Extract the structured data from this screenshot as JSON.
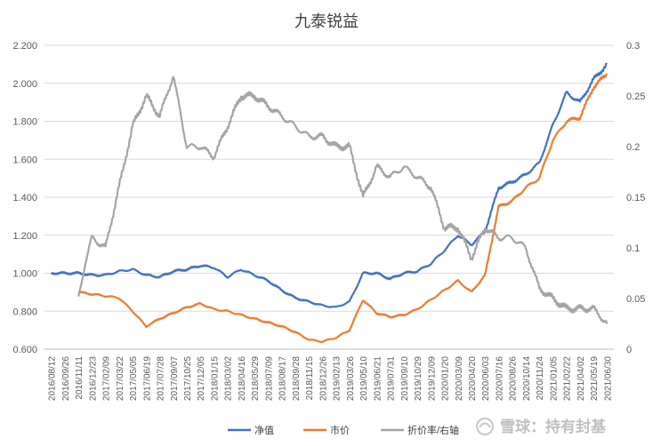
{
  "chart_data": {
    "type": "line",
    "title": "九泰锐益",
    "y_left": {
      "min": 0.6,
      "max": 2.2,
      "step": 0.2,
      "ticks": [
        "0.600",
        "0.800",
        "1.000",
        "1.200",
        "1.400",
        "1.600",
        "1.800",
        "2.000",
        "2.200"
      ]
    },
    "y_right": {
      "min": 0,
      "max": 0.3,
      "step": 0.05,
      "ticks": [
        "0",
        "0.05",
        "0.1",
        "0.15",
        "0.2",
        "0.25",
        "0.3"
      ]
    },
    "x_ticks": [
      "2016/08/12",
      "2016/09/26",
      "2016/11/11",
      "2016/12/23",
      "2017/02/09",
      "2017/03/22",
      "2017/05/05",
      "2017/06/19",
      "2017/07/28",
      "2017/09/07",
      "2017/10/25",
      "2017/12/05",
      "2018/01/15",
      "2018/03/02",
      "2018/04/16",
      "2018/05/29",
      "2018/07/09",
      "2018/08/17",
      "2018/09/28",
      "2018/11/15",
      "2018/12/26",
      "2019/02/13",
      "2019/03/26",
      "2019/05/10",
      "2019/06/21",
      "2019/07/31",
      "2019/09/10",
      "2019/10/29",
      "2019/12/09",
      "2020/01/20",
      "2020/03/09",
      "2020/04/20",
      "2020/06/03",
      "2020/07/16",
      "2020/08/26",
      "2020/10/14",
      "2020/11/24",
      "2021/01/05",
      "2021/02/22",
      "2021/04/02",
      "2021/05/19",
      "2021/06/30"
    ],
    "series": [
      {
        "name": "净值",
        "axis": "left",
        "color": "#4472C4",
        "x": [
          0,
          1,
          2,
          3,
          4,
          5,
          6,
          7,
          8,
          9,
          10,
          11,
          12,
          13,
          14,
          15,
          16,
          17,
          18,
          19,
          20,
          21,
          22,
          23,
          24,
          25,
          26,
          27,
          28,
          29,
          30,
          31,
          32,
          33,
          34,
          35,
          36,
          37,
          38,
          39,
          40,
          41
        ],
        "values": [
          1.0,
          1.0,
          1.0,
          0.99,
          0.99,
          1.01,
          1.02,
          0.99,
          0.98,
          1.01,
          1.02,
          1.04,
          1.03,
          0.98,
          1.02,
          0.99,
          0.96,
          0.91,
          0.87,
          0.85,
          0.83,
          0.82,
          0.85,
          1.0,
          1.0,
          0.97,
          1.0,
          1.01,
          1.05,
          1.12,
          1.2,
          1.15,
          1.22,
          1.45,
          1.48,
          1.52,
          1.58,
          1.78,
          1.95,
          1.9,
          2.02,
          2.1
        ]
      },
      {
        "name": "市价",
        "axis": "left",
        "color": "#ED7D31",
        "x": [
          2,
          3,
          4,
          5,
          6,
          7,
          8,
          9,
          10,
          11,
          12,
          13,
          14,
          15,
          16,
          17,
          18,
          19,
          20,
          21,
          22,
          23,
          24,
          25,
          26,
          27,
          28,
          29,
          30,
          31,
          32,
          33,
          34,
          35,
          36,
          37,
          38,
          39,
          40,
          41
        ],
        "values": [
          0.9,
          0.89,
          0.88,
          0.87,
          0.8,
          0.72,
          0.76,
          0.79,
          0.82,
          0.84,
          0.81,
          0.8,
          0.78,
          0.76,
          0.74,
          0.72,
          0.69,
          0.65,
          0.64,
          0.66,
          0.7,
          0.86,
          0.79,
          0.77,
          0.78,
          0.81,
          0.86,
          0.91,
          0.96,
          0.9,
          0.99,
          1.35,
          1.38,
          1.45,
          1.5,
          1.7,
          1.8,
          1.82,
          1.98,
          2.05
        ]
      },
      {
        "name": "折价率/右轴",
        "axis": "right",
        "color": "#A5A5A5",
        "x": [
          2,
          2.5,
          3,
          4,
          5,
          6,
          7,
          7.5,
          8,
          9,
          10,
          11,
          12,
          13,
          14,
          15,
          16,
          17,
          18,
          19,
          20,
          21,
          22,
          23,
          24,
          25,
          26,
          27,
          28,
          29,
          30,
          31,
          32,
          33,
          34,
          35,
          36,
          37,
          38,
          39,
          40,
          41
        ],
        "values": [
          0.05,
          0.085,
          0.11,
          0.1,
          0.16,
          0.22,
          0.25,
          0.24,
          0.23,
          0.27,
          0.2,
          0.2,
          0.19,
          0.22,
          0.25,
          0.25,
          0.24,
          0.23,
          0.22,
          0.21,
          0.21,
          0.2,
          0.2,
          0.15,
          0.18,
          0.17,
          0.18,
          0.17,
          0.16,
          0.12,
          0.12,
          0.09,
          0.12,
          0.11,
          0.11,
          0.1,
          0.06,
          0.05,
          0.04,
          0.04,
          0.04,
          0.025
        ]
      }
    ],
    "legend_position": "bottom"
  },
  "watermark": "雪球：持有封基"
}
